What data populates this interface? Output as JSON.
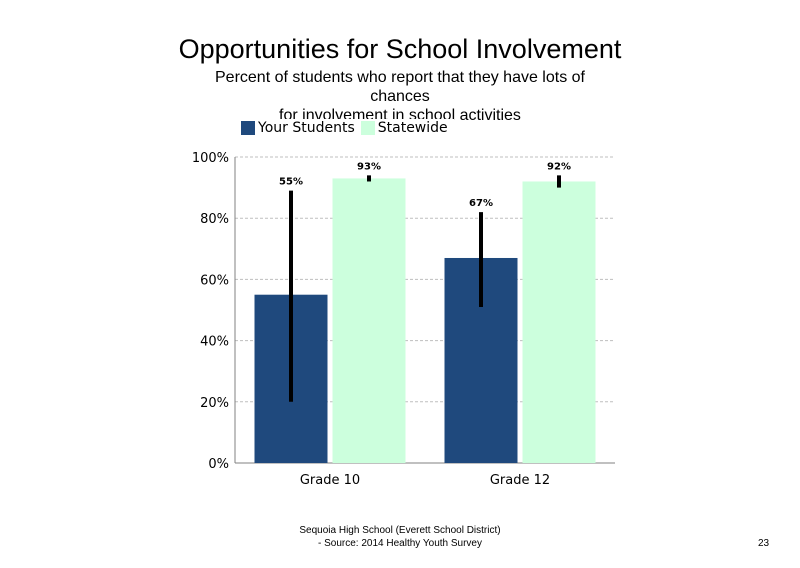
{
  "slide": {
    "title": "Opportunities for School Involvement",
    "subtitle_line1": "Percent of students who report that they have lots of chances",
    "subtitle_line2": "for involvement in school activities",
    "footer_line1": "Sequoia High School (Everett School District)",
    "footer_line2": "- Source: 2014 Healthy Youth Survey",
    "page_number": "23"
  },
  "colors": {
    "your_students": "#1f497d",
    "statewide": "#ccffdd",
    "error_bar": "#000000",
    "grid": "#bfbfbf"
  },
  "chart_data": {
    "type": "bar",
    "title": "Opportunities for School Involvement",
    "categories": [
      "Grade 10",
      "Grade 12"
    ],
    "series": [
      {
        "name": "Your Students",
        "values": [
          55,
          67
        ],
        "labels": [
          "55%",
          "67%"
        ],
        "error_low": [
          20,
          51
        ],
        "error_high": [
          89,
          82
        ]
      },
      {
        "name": "Statewide",
        "values": [
          93,
          92
        ],
        "labels": [
          "93%",
          "92%"
        ],
        "error_low": [
          92,
          90
        ],
        "error_high": [
          94,
          94
        ]
      }
    ],
    "ylim": [
      0,
      100
    ],
    "yticks": [
      0,
      20,
      40,
      60,
      80,
      100
    ],
    "ytick_labels": [
      "0%",
      "20%",
      "40%",
      "60%",
      "80%",
      "100%"
    ],
    "grid": true,
    "legend_position": "top-left"
  }
}
